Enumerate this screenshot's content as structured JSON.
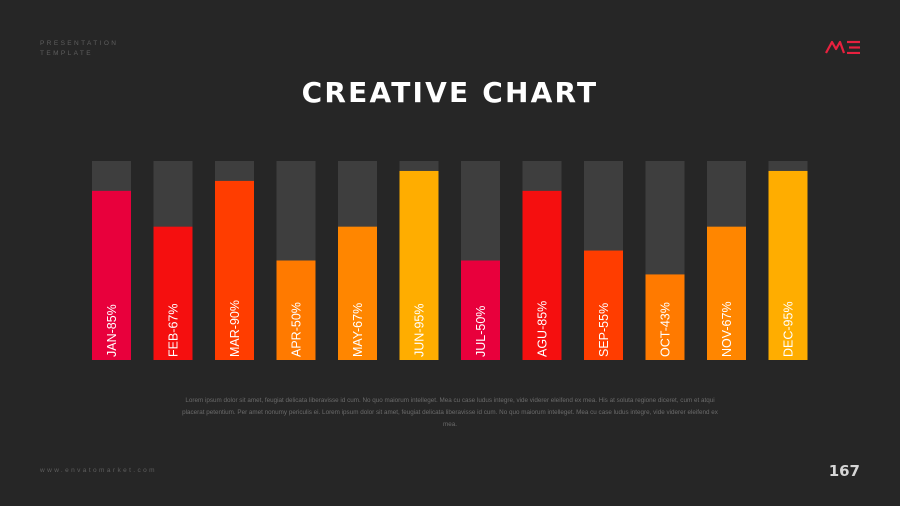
{
  "header": {
    "line1": "PRESENTATION",
    "line2": "TEMPLATE",
    "logo_color": "#e8213f"
  },
  "title": "CREATIVE CHART",
  "chart_data": {
    "type": "bar",
    "categories": [
      "JAN",
      "FEB",
      "MAR",
      "APR",
      "MAY",
      "JUN",
      "JUL",
      "AGU",
      "SEP",
      "OCT",
      "NOV",
      "DEC"
    ],
    "labels": [
      "JAN-85%",
      "FEB-67%",
      "MAR-90%",
      "APR-50%",
      "MAY-67%",
      "JUN-95%",
      "JUL-50%",
      "AGU-85%",
      "SEP-55%",
      "OCT-43%",
      "NOV-67%",
      "DEC-95%"
    ],
    "values": [
      85,
      67,
      90,
      50,
      67,
      95,
      50,
      85,
      55,
      43,
      67,
      95
    ],
    "colors": [
      "#e8003c",
      "#f50f0f",
      "#ff3d00",
      "#ff7a00",
      "#ff8600",
      "#ffad00",
      "#e8003c",
      "#f50f0f",
      "#ff3d00",
      "#ff7a00",
      "#ff8600",
      "#ffad00"
    ],
    "track_color": "#3e3e3e",
    "ylim": [
      0,
      100
    ],
    "title": "",
    "xlabel": "",
    "ylabel": "",
    "grid": false,
    "legend": "none"
  },
  "body_text": "Lorem ipsum dolor sit amet, feugiat delicata liberavisse id cum. No quo maiorum intelleget. Mea cu case ludus integre, vide viderer eleifend ex mea. His at soluta regione diceret, cum et atqui placerat petentium. Per amet nonumy periculis ei. Lorem ipsum dolor sit amet, feugiat delicata liberavisse id cum. No quo maiorum intelleget. Mea cu case ludus integre, vide viderer eleifend ex mea.",
  "footer": {
    "url": "www.envatomarket.com",
    "page_number": "167"
  }
}
